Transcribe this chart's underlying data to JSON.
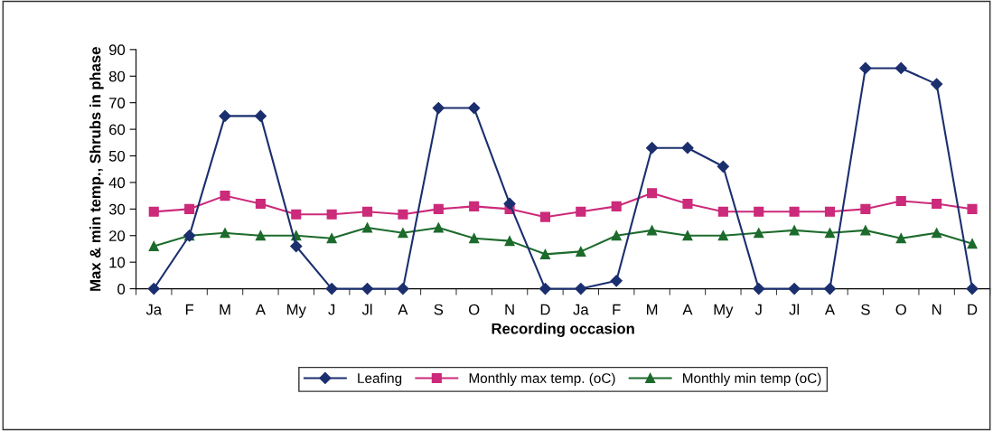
{
  "chart_data": {
    "type": "line",
    "xlabel": "Recording occasion",
    "ylabel": "Max & min temp., Shrubs in phase",
    "categories": [
      "Ja",
      "F",
      "M",
      "A",
      "My",
      "J",
      "Jl",
      "A",
      "S",
      "O",
      "N",
      "D",
      "Ja",
      "F",
      "M",
      "A",
      "My",
      "J",
      "Jl",
      "A",
      "S",
      "O",
      "N",
      "D"
    ],
    "series": [
      {
        "name": "Leafing",
        "color": "#1b2f6e",
        "marker": "diamond",
        "values": [
          0,
          20,
          65,
          65,
          16,
          0,
          0,
          0,
          68,
          68,
          32,
          0,
          0,
          3,
          53,
          53,
          46,
          0,
          0,
          0,
          83,
          83,
          77,
          0
        ]
      },
      {
        "name": "Monthly max temp. (oC)",
        "color": "#cc2a7a",
        "marker": "square",
        "values": [
          29,
          30,
          35,
          32,
          28,
          28,
          29,
          28,
          30,
          31,
          30,
          27,
          29,
          31,
          36,
          32,
          29,
          29,
          29,
          29,
          30,
          33,
          32,
          30
        ]
      },
      {
        "name": "Monthly min temp (oC)",
        "color": "#1d6b2c",
        "marker": "triangle",
        "values": [
          16,
          20,
          21,
          20,
          20,
          19,
          23,
          21,
          23,
          19,
          18,
          13,
          14,
          20,
          22,
          20,
          20,
          21,
          22,
          21,
          22,
          19,
          21,
          17
        ]
      }
    ],
    "ylim": [
      0,
      90
    ],
    "yticks": [
      0,
      10,
      20,
      30,
      40,
      50,
      60,
      70,
      80,
      90
    ],
    "grid": false,
    "legend": "bottom"
  }
}
